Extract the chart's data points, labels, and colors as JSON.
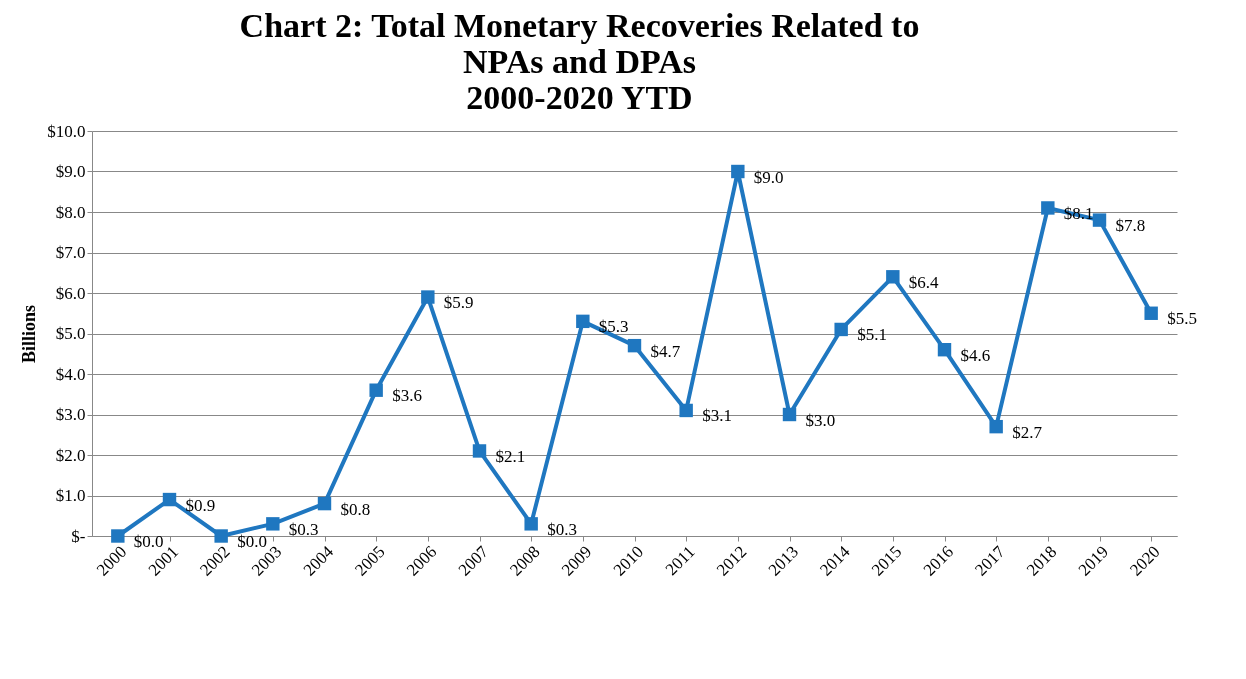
{
  "chart_data": {
    "type": "line",
    "title": "Chart 2: Total Monetary Recoveries Related to\nNPAs and DPAs\n2000-2020 YTD",
    "ylabel": "Billions",
    "categories": [
      "2000",
      "2001",
      "2002",
      "2003",
      "2004",
      "2005",
      "2006",
      "2007",
      "2008",
      "2009",
      "2010",
      "2011",
      "2012",
      "2013",
      "2014",
      "2015",
      "2016",
      "2017",
      "2018",
      "2019",
      "2020"
    ],
    "series": [
      {
        "color": "#1f77c0",
        "values": [
          0.0,
          0.9,
          0.0,
          0.3,
          0.8,
          3.6,
          5.9,
          2.1,
          0.3,
          5.3,
          4.7,
          3.1,
          9.0,
          3.0,
          5.1,
          6.4,
          4.6,
          2.7,
          8.1,
          7.8,
          5.5
        ],
        "value_labels": [
          "$0.0",
          "$0.9",
          "$0.0",
          "$0.3",
          "$0.8",
          "$3.6",
          "$5.9",
          "$2.1",
          "$0.3",
          "$5.3",
          "$4.7",
          "$3.1",
          "$9.0",
          "$3.0",
          "$5.1",
          "$6.4",
          "$4.6",
          "$2.7",
          "$8.1",
          "$7.8",
          "$5.5"
        ]
      }
    ],
    "ylim": [
      0,
      10
    ],
    "yticks": [
      {
        "value": 0,
        "label": "$-"
      },
      {
        "value": 1,
        "label": "$1.0"
      },
      {
        "value": 2,
        "label": "$2.0"
      },
      {
        "value": 3,
        "label": "$3.0"
      },
      {
        "value": 4,
        "label": "$4.0"
      },
      {
        "value": 5,
        "label": "$5.0"
      },
      {
        "value": 6,
        "label": "$6.0"
      },
      {
        "value": 7,
        "label": "$7.0"
      },
      {
        "value": 8,
        "label": "$8.0"
      },
      {
        "value": 9,
        "label": "$9.0"
      },
      {
        "value": 10,
        "label": "$10.0"
      }
    ],
    "grid": "y",
    "marker": "square"
  }
}
